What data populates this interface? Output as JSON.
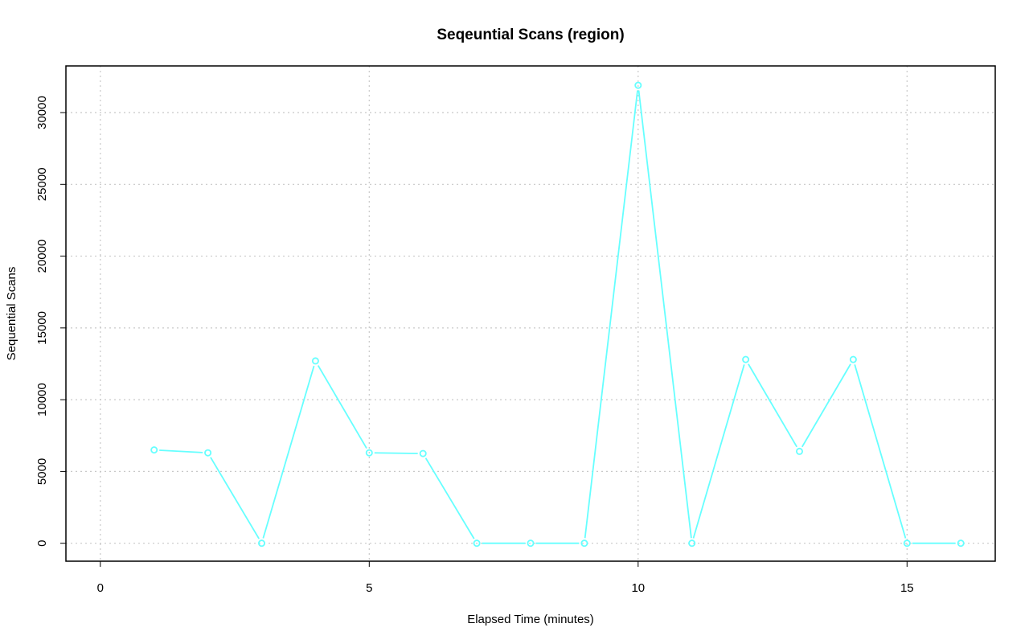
{
  "chart_data": {
    "type": "line",
    "title": "Seqeuntial Scans (region)",
    "xlabel": "Elapsed Time (minutes)",
    "ylabel": "Sequential Scans",
    "xlim": [
      -0.64,
      16.64
    ],
    "ylim": [
      -1250,
      33250
    ],
    "xticks": [
      0,
      5,
      10,
      15
    ],
    "yticks": [
      0,
      5000,
      10000,
      15000,
      20000,
      25000,
      30000
    ],
    "grid": true,
    "series": [
      {
        "color": "#66ffff",
        "marker": "circle",
        "x": [
          1,
          2,
          3,
          4,
          5,
          6,
          7,
          8,
          9,
          10,
          11,
          12,
          13,
          14,
          15,
          16
        ],
        "y": [
          6500,
          6300,
          0,
          12700,
          6300,
          6250,
          0,
          0,
          0,
          31900,
          0,
          12800,
          6400,
          12800,
          0,
          0
        ]
      }
    ]
  }
}
